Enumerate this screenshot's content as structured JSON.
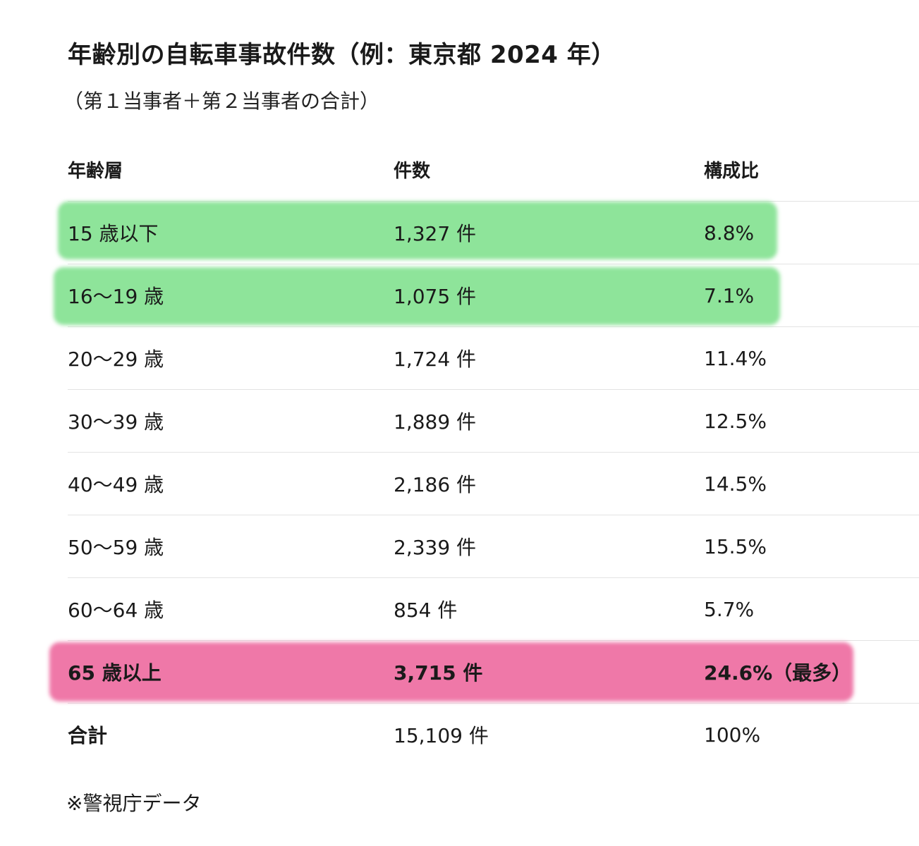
{
  "title": "年齢別の自転車事故件数（例：東京都 2024 年）",
  "subtitle": "（第１当事者＋第２当事者の合計）",
  "table": {
    "headers": [
      "年齢層",
      "件数",
      "構成比"
    ],
    "rows": [
      {
        "age": "15 歳以下",
        "count": "1,327 件",
        "ratio": "8.8%"
      },
      {
        "age": "16〜19 歳",
        "count": "1,075 件",
        "ratio": "7.1%"
      },
      {
        "age": "20〜29 歳",
        "count": "1,724 件",
        "ratio": "11.4%"
      },
      {
        "age": "30〜39 歳",
        "count": "1,889 件",
        "ratio": "12.5%"
      },
      {
        "age": "40〜49 歳",
        "count": "2,186 件",
        "ratio": "14.5%"
      },
      {
        "age": "50〜59 歳",
        "count": "2,339 件",
        "ratio": "15.5%"
      },
      {
        "age": "60〜64 歳",
        "count": "854 件",
        "ratio": "5.7%"
      },
      {
        "age": "65 歳以上",
        "count": "3,715 件",
        "ratio": "24.6%（最多）"
      }
    ],
    "total": {
      "age": "合計",
      "count": "15,109 件",
      "ratio": "100%"
    }
  },
  "highlight_colors": {
    "green": "#8ee49a",
    "pink": "#ef78a8"
  },
  "footnote": "※警視庁データ"
}
